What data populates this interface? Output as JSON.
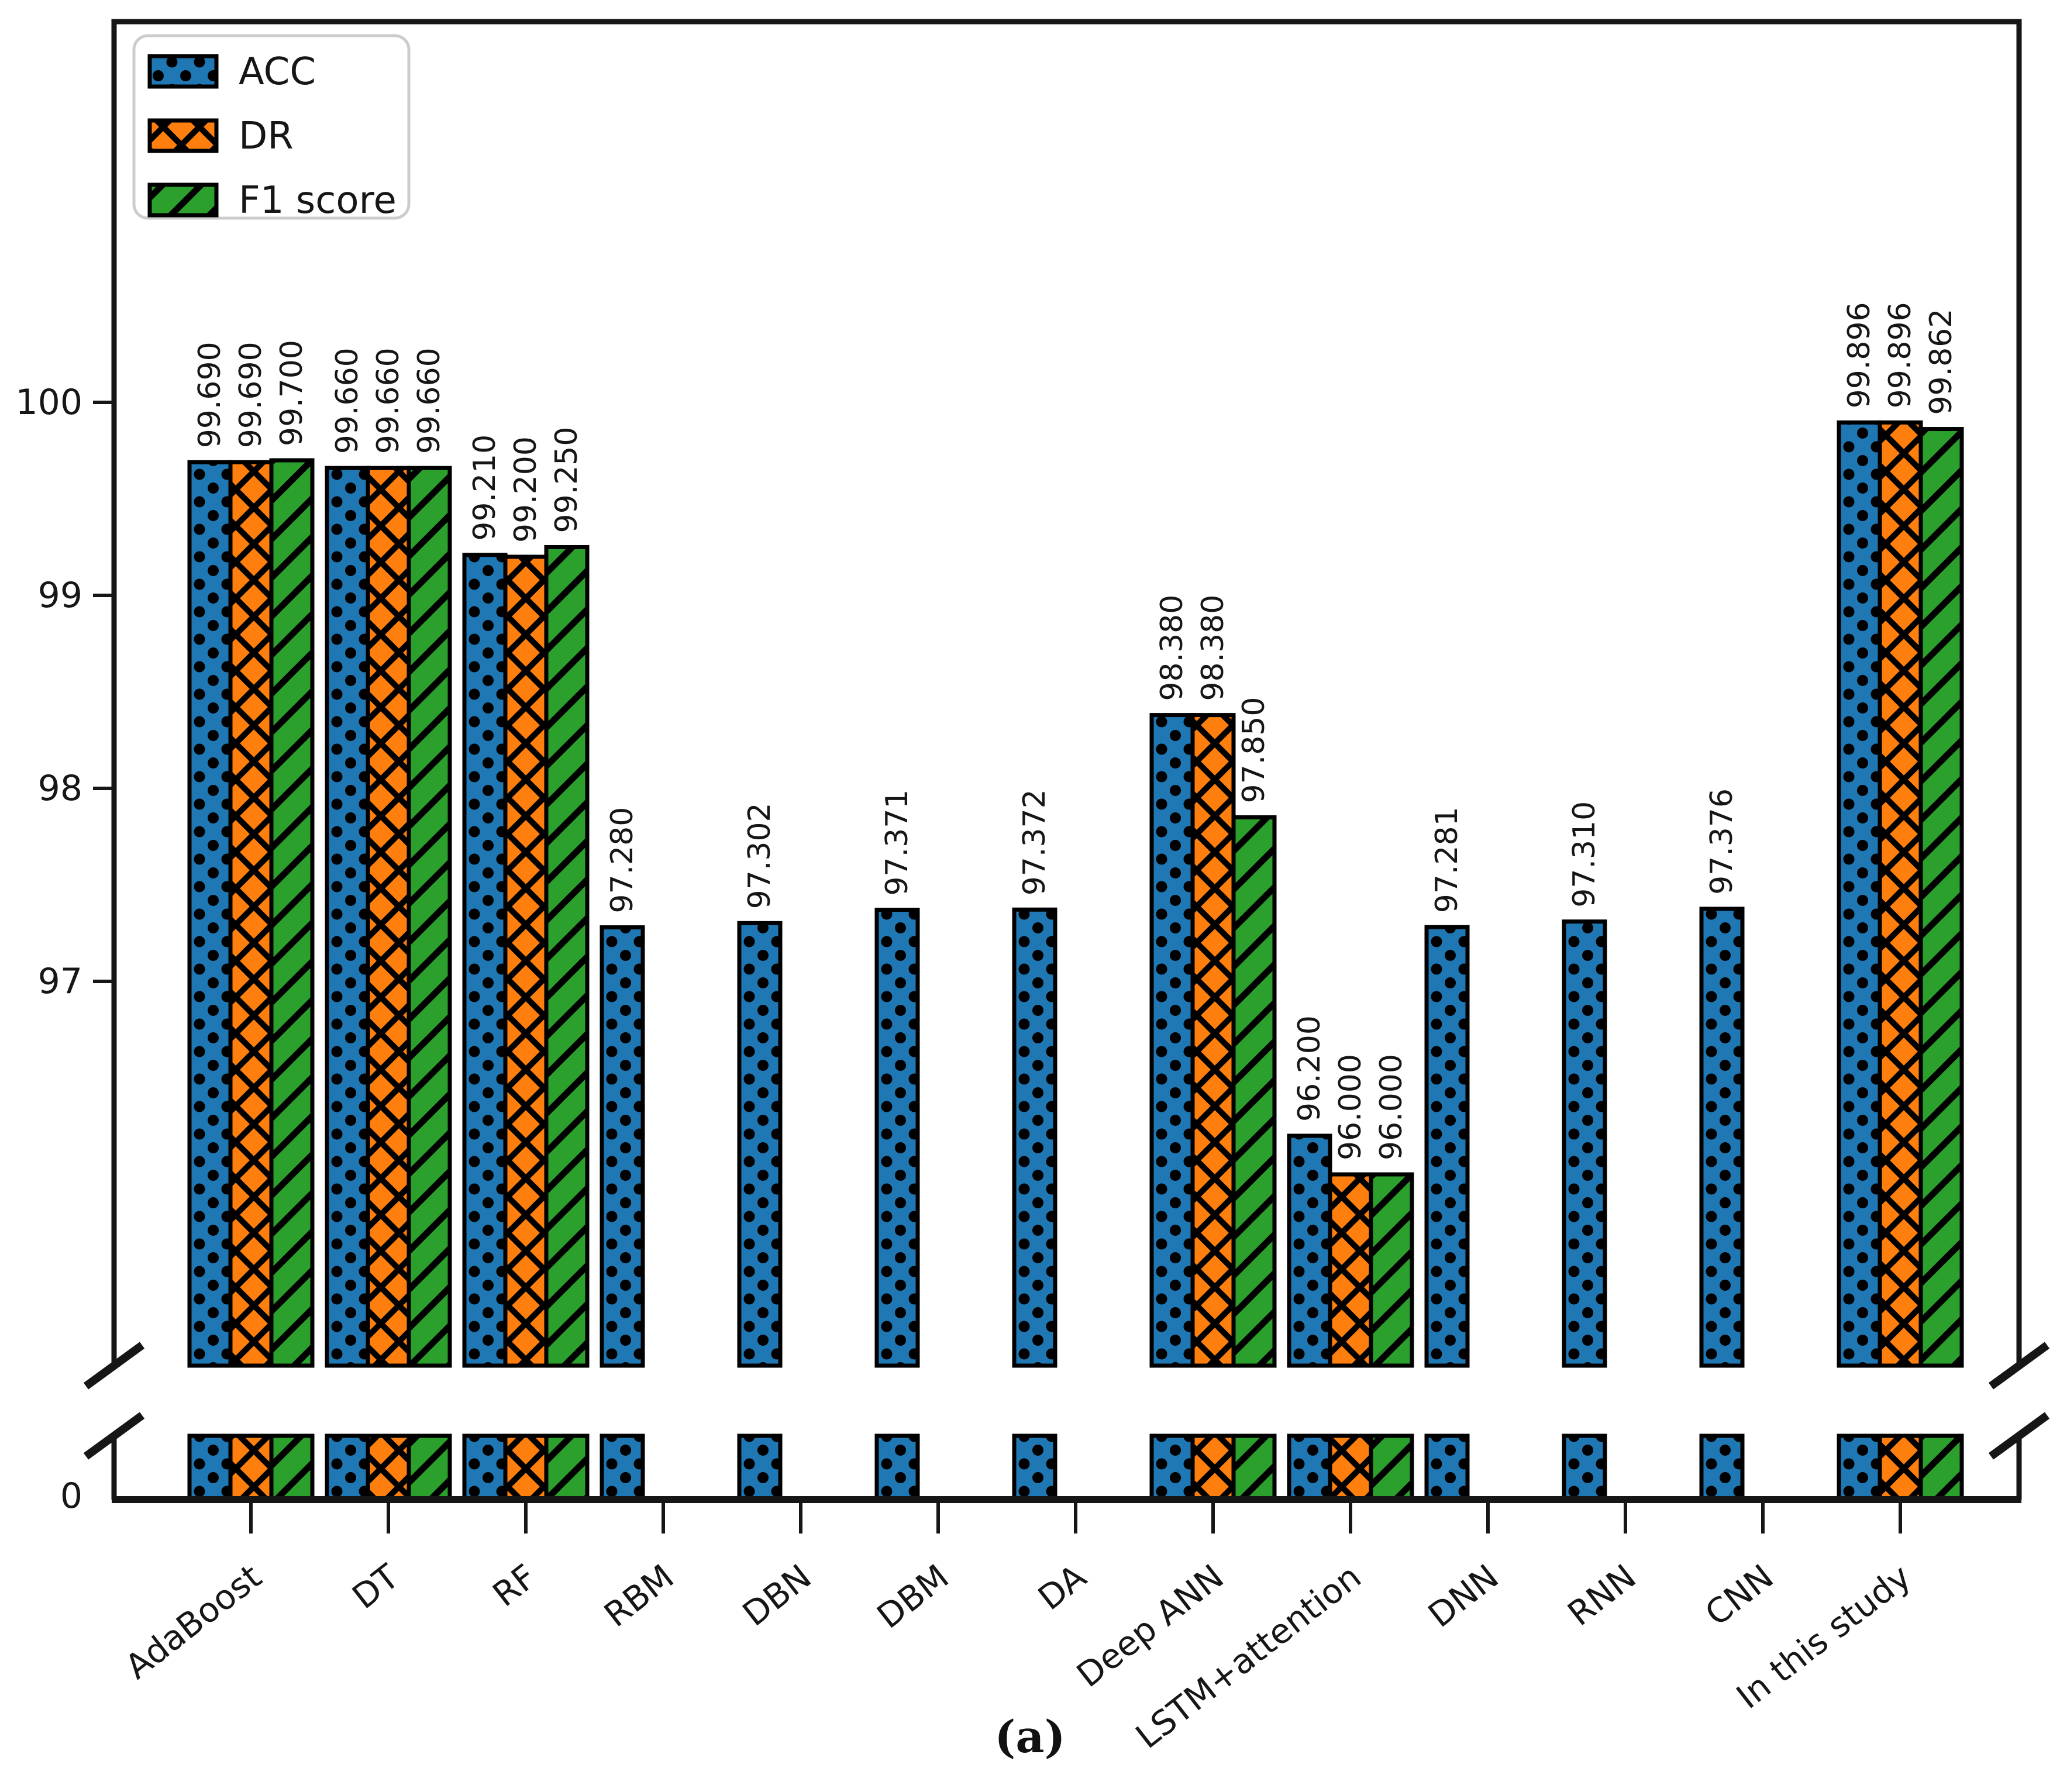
{
  "figure": {
    "caption": "(a)"
  },
  "chart_data": {
    "type": "bar",
    "title": "",
    "xlabel": "",
    "ylabel": "",
    "broken_axis": true,
    "grid": false,
    "upper_axis": {
      "ylim": [
        95.0,
        101.95
      ],
      "yticks": [
        100,
        99,
        98,
        97
      ]
    },
    "lower_axis": {
      "ytick": "0"
    },
    "x_tick_rotation_deg": 38,
    "legend": {
      "position": "upper left",
      "entries": [
        "ACC",
        "DR",
        "F1 score"
      ]
    },
    "categories": [
      "AdaBoost",
      "DT",
      "RF",
      "RBM",
      "DBN",
      "DBM",
      "DA",
      "Deep ANN",
      "LSTM+attention",
      "DNN",
      "RNN",
      "CNN",
      "In this study"
    ],
    "series": [
      {
        "name": "ACC",
        "color": "#1f77b4",
        "hatch": "dot",
        "values": [
          99.69,
          99.66,
          99.21,
          97.28,
          97.302,
          97.371,
          97.372,
          98.38,
          96.2,
          97.281,
          97.31,
          97.376,
          99.896
        ],
        "labels": [
          "99.690",
          "99.660",
          "99.210",
          "97.280",
          "97.302",
          "97.371",
          "97.372",
          "98.380",
          "96.200",
          "97.281",
          "97.310",
          "97.376",
          "99.896"
        ]
      },
      {
        "name": "DR",
        "color": "#ff7f0e",
        "hatch": "cross",
        "values": [
          99.69,
          99.66,
          99.2,
          null,
          null,
          null,
          null,
          98.38,
          96.0,
          null,
          null,
          null,
          99.896
        ],
        "labels": [
          "99.690",
          "99.660",
          "99.200",
          null,
          null,
          null,
          null,
          "98.380",
          "96.000",
          null,
          null,
          null,
          "99.896"
        ]
      },
      {
        "name": "F1 score",
        "color": "#2ca02c",
        "hatch": "diag",
        "values": [
          99.7,
          99.66,
          99.25,
          null,
          null,
          null,
          null,
          97.85,
          96.0,
          null,
          null,
          null,
          99.862
        ],
        "labels": [
          "99.700",
          "99.660",
          "99.250",
          null,
          null,
          null,
          null,
          "97.850",
          "96.000",
          null,
          null,
          null,
          "99.862"
        ]
      }
    ]
  }
}
